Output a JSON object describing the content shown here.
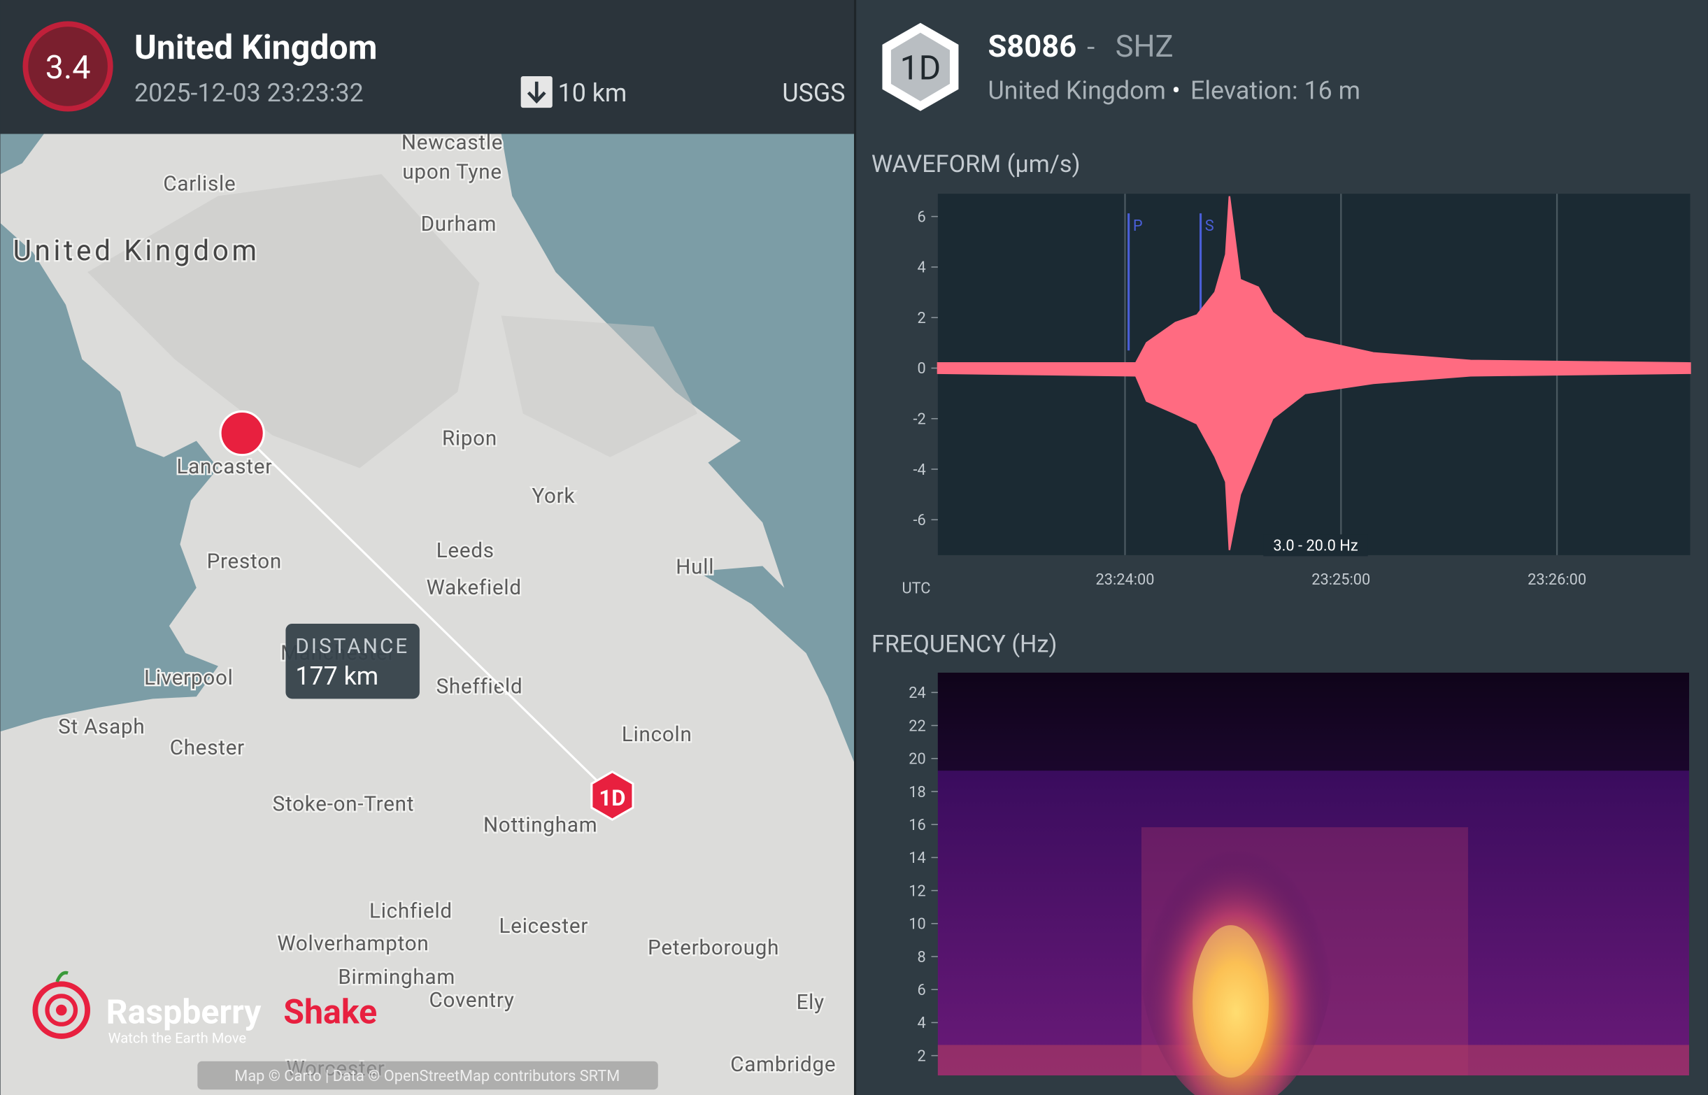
{
  "event": {
    "magnitude": "3.4",
    "title": "United Kingdom",
    "time": "2025-12-03 23:23:32",
    "depth": "10 km",
    "source": "USGS"
  },
  "map": {
    "labels": [
      "Newcastle",
      "upon Tyne",
      "Carlisle",
      "United Kingdom",
      "Durham",
      "Ripon",
      "Lancaster",
      "York",
      "Leeds",
      "Preston",
      "Hull",
      "Wakefield",
      "Manchester",
      "Liverpool",
      "Sheffield",
      "St Asaph",
      "Chester",
      "Lincoln",
      "Stoke-on-Trent",
      "Nottingham",
      "Lichfield",
      "Leicester",
      "Wolverhampton",
      "Peterborough",
      "Birmingham",
      "Coventry",
      "Ely",
      "Worcester",
      "Cambridge"
    ],
    "distance_label": "DISTANCE",
    "distance": "177 km",
    "logo": {
      "name1": "Raspberry",
      "name2": "Shake",
      "tagline": "Watch the Earth Move"
    },
    "attribution": "Map © Carto | Data © OpenStreetMap contributors SRTM"
  },
  "station": {
    "badge": "1D",
    "code": "S8086",
    "separator": "-",
    "channel": "SHZ",
    "country": "United Kingdom",
    "dot": "•",
    "elevation": "Elevation: 16 m"
  },
  "waveform": {
    "title": "WAVEFORM (µm/s)",
    "utc": "UTC",
    "filter": "3.0 - 20.0 Hz",
    "ylim": [
      -7.4,
      6.9
    ],
    "yticks": [
      6,
      4,
      2,
      0,
      -2,
      -4,
      -6
    ],
    "xlim": [
      84188,
      84397
    ],
    "xticks": [
      {
        "value": 84240,
        "label": "23:24:00"
      },
      {
        "value": 84300,
        "label": "23:25:00"
      },
      {
        "value": 84360,
        "label": "23:26:00"
      }
    ],
    "picks": [
      {
        "name": "P",
        "x": 84241
      },
      {
        "name": "S",
        "x": 84261
      }
    ],
    "color": "#ff6b81",
    "envelope": {
      "x": [
        84188,
        84243,
        84246,
        84254,
        84260,
        84265,
        84268,
        84269,
        84272,
        84277,
        84281,
        84290,
        84309,
        84336,
        84397
      ],
      "upper": [
        0.2,
        0.2,
        1.0,
        1.8,
        2.1,
        3.0,
        4.5,
        6.8,
        3.5,
        3.2,
        2.2,
        1.2,
        0.6,
        0.3,
        0.2
      ],
      "lower": [
        -0.2,
        -0.3,
        -1.3,
        -1.8,
        -2.2,
        -3.5,
        -4.5,
        -7.2,
        -5.0,
        -3.3,
        -2.0,
        -1.0,
        -0.6,
        -0.3,
        -0.2
      ]
    }
  },
  "frequency": {
    "title": "FREQUENCY (Hz)",
    "ylim": [
      0.8,
      25.2
    ],
    "yticks": [
      24,
      22,
      20,
      18,
      16,
      14,
      12,
      10,
      8,
      6,
      4,
      2
    ]
  }
}
